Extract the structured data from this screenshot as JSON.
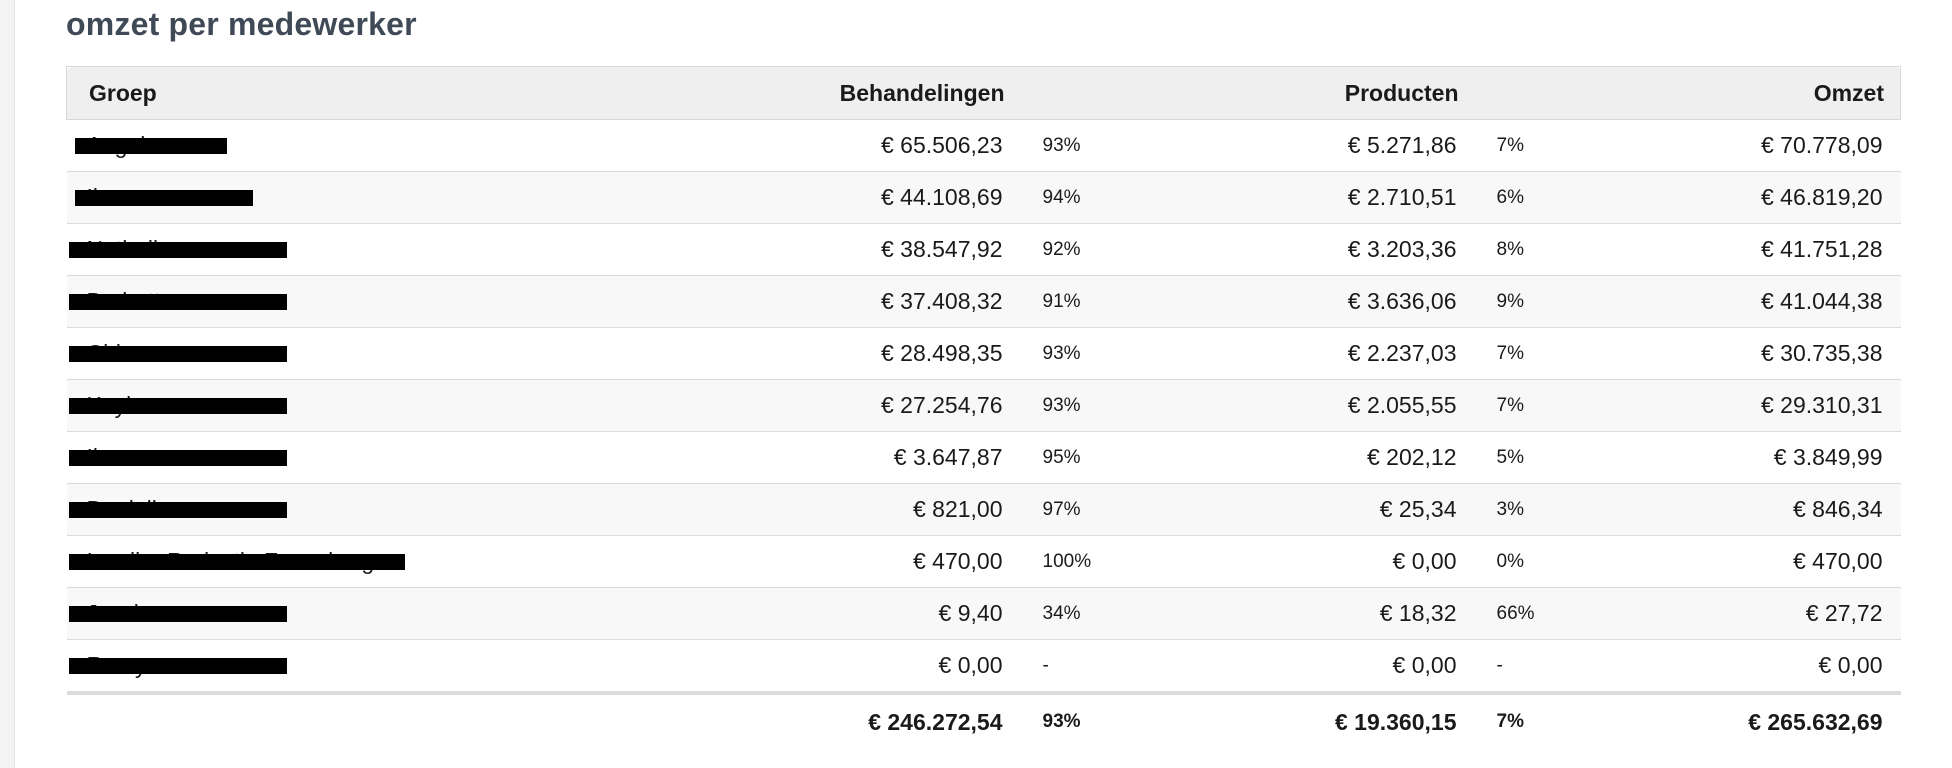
{
  "page": {
    "title": "omzet per medewerker"
  },
  "table": {
    "headers": {
      "group": "Groep",
      "behandelingen": "Behandelingen",
      "producten": "Producten",
      "omzet": "Omzet"
    },
    "rows": [
      {
        "name": "Angela",
        "behandelingen": "€ 65.506,23",
        "beh_pct": "93%",
        "producten": "€ 5.271,86",
        "prod_pct": "7%",
        "omzet": "€ 70.778,09"
      },
      {
        "name": "Ilona",
        "behandelingen": "€ 44.108,69",
        "beh_pct": "94%",
        "producten": "€ 2.710,51",
        "prod_pct": "6%",
        "omzet": "€ 46.819,20"
      },
      {
        "name": "Nathalie",
        "behandelingen": "€ 38.547,92",
        "beh_pct": "92%",
        "producten": "€ 3.203,36",
        "prod_pct": "8%",
        "omzet": "€ 41.751,28"
      },
      {
        "name": "Barbette",
        "behandelingen": "€ 37.408,32",
        "beh_pct": "91%",
        "producten": "€ 3.636,06",
        "prod_pct": "9%",
        "omzet": "€ 41.044,38"
      },
      {
        "name": "Chi",
        "behandelingen": "€ 28.498,35",
        "beh_pct": "93%",
        "producten": "€ 2.237,03",
        "prod_pct": "7%",
        "omzet": "€ 30.735,38"
      },
      {
        "name": "Kaylee",
        "behandelingen": "€ 27.254,76",
        "beh_pct": "93%",
        "producten": "€ 2.055,55",
        "prod_pct": "7%",
        "omzet": "€ 29.310,31"
      },
      {
        "name": "Il",
        "behandelingen": "€ 3.647,87",
        "beh_pct": "95%",
        "producten": "€ 202,12",
        "prod_pct": "5%",
        "omzet": "€ 3.849,99"
      },
      {
        "name": "Danielle",
        "behandelingen": "€ 821,00",
        "beh_pct": "97%",
        "producten": "€ 25,34",
        "prod_pct": "3%",
        "omzet": "€ 846,34"
      },
      {
        "name": "Invaller Redactie Zevenberg",
        "behandelingen": "€ 470,00",
        "beh_pct": "100%",
        "producten": "€ 0,00",
        "prod_pct": "0%",
        "omzet": "€ 470,00"
      },
      {
        "name": "Jessica",
        "behandelingen": "€ 9,40",
        "beh_pct": "34%",
        "producten": "€ 18,32",
        "prod_pct": "66%",
        "omzet": "€ 27,72"
      },
      {
        "name": "Romy",
        "behandelingen": "€ 0,00",
        "beh_pct": "-",
        "producten": "€ 0,00",
        "prod_pct": "-",
        "omzet": "€ 0,00"
      }
    ],
    "totals": {
      "behandelingen": "€ 246.272,54",
      "beh_pct": "93%",
      "producten": "€ 19.360,15",
      "prod_pct": "7%",
      "omzet": "€ 265.632,69"
    }
  }
}
